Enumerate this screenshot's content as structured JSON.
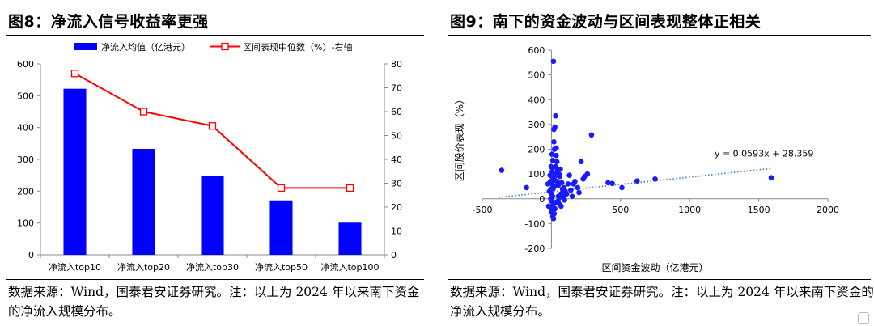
{
  "left": {
    "title": "图8：净流入信号收益率更强",
    "note": "数据来源：Wind，国泰君安证券研究。注：以上为 2024 年以来南下资金的净流入规模分布。",
    "chart_data": {
      "type": "bar",
      "categories": [
        "净流入top10",
        "净流入top20",
        "净流入top30",
        "净流入top50",
        "净流入top100"
      ],
      "series": [
        {
          "name": "净流入均值（亿港元）",
          "type": "bar",
          "axis": "left",
          "color": "#0000ff",
          "values": [
            522,
            333,
            248,
            171,
            101
          ]
        },
        {
          "name": "区间表现中位数（%）-右轴",
          "type": "line",
          "axis": "right",
          "color": "#ff0000",
          "values": [
            76,
            60,
            54,
            28,
            28
          ]
        }
      ],
      "yleft": {
        "lim": [
          0,
          600
        ],
        "ticks": [
          0,
          100,
          200,
          300,
          400,
          500,
          600
        ]
      },
      "yright": {
        "lim": [
          0,
          80
        ],
        "ticks": [
          0,
          10,
          20,
          30,
          40,
          50,
          60,
          70,
          80
        ]
      },
      "legend_position": "top"
    }
  },
  "right": {
    "title": "图9：南下的资金波动与区间表现整体正相关",
    "note": "数据来源：Wind，国泰君安证券研究。注：以上为 2024 年以来南下资金的净流入规模分布。",
    "chart_data": {
      "type": "scatter",
      "xlabel": "区间资金波动（亿港元）",
      "ylabel": "区间股价表现（%）",
      "xlim": [
        -500,
        2000
      ],
      "ylim": [
        -200,
        600
      ],
      "xticks": [
        -500,
        0,
        500,
        1000,
        1500,
        2000
      ],
      "yticks": [
        -200,
        -100,
        0,
        100,
        200,
        300,
        400,
        500,
        600
      ],
      "color": "#1a1aff",
      "trendline": {
        "slope": 0.0593,
        "intercept": 28.359,
        "label": "y = 0.0593x + 28.359",
        "color": "#4a86c8"
      },
      "points": [
        [
          -360,
          115
        ],
        [
          -180,
          45
        ],
        [
          1590,
          85
        ],
        [
          750,
          80
        ],
        [
          620,
          72
        ],
        [
          440,
          62
        ],
        [
          410,
          65
        ],
        [
          510,
          45
        ],
        [
          290,
          258
        ],
        [
          215,
          150
        ],
        [
          170,
          70
        ],
        [
          260,
          100
        ],
        [
          240,
          90
        ],
        [
          190,
          45
        ],
        [
          130,
          95
        ],
        [
          120,
          60
        ],
        [
          100,
          30
        ],
        [
          85,
          10
        ],
        [
          80,
          40
        ],
        [
          70,
          20
        ],
        [
          60,
          5
        ],
        [
          55,
          -20
        ],
        [
          50,
          55
        ],
        [
          45,
          115
        ],
        [
          40,
          150
        ],
        [
          30,
          130
        ],
        [
          35,
          175
        ],
        [
          35,
          205
        ],
        [
          42,
          70
        ],
        [
          48,
          -10
        ],
        [
          30,
          335
        ],
        [
          25,
          290
        ],
        [
          18,
          280
        ],
        [
          15,
          555
        ],
        [
          10,
          85
        ],
        [
          10,
          155
        ],
        [
          10,
          125
        ],
        [
          5,
          180
        ],
        [
          5,
          110
        ],
        [
          5,
          60
        ],
        [
          0,
          40
        ],
        [
          0,
          20
        ],
        [
          -5,
          0
        ],
        [
          -10,
          95
        ],
        [
          -15,
          30
        ],
        [
          -20,
          -30
        ],
        [
          -25,
          60
        ],
        [
          0,
          -45
        ],
        [
          5,
          -55
        ],
        [
          10,
          -70
        ],
        [
          15,
          -80
        ],
        [
          20,
          -60
        ],
        [
          25,
          -40
        ],
        [
          30,
          -15
        ],
        [
          20,
          50
        ],
        [
          25,
          75
        ],
        [
          28,
          100
        ],
        [
          12,
          40
        ],
        [
          8,
          10
        ],
        [
          -8,
          70
        ],
        [
          60,
          90
        ],
        [
          75,
          65
        ],
        [
          90,
          45
        ],
        [
          110,
          20
        ],
        [
          140,
          35
        ],
        [
          150,
          10
        ],
        [
          160,
          60
        ],
        [
          200,
          25
        ],
        [
          230,
          80
        ],
        [
          65,
          120
        ],
        [
          55,
          100
        ],
        [
          40,
          95
        ],
        [
          18,
          230
        ],
        [
          22,
          200
        ],
        [
          12,
          -25
        ],
        [
          2,
          -10
        ],
        [
          -3,
          130
        ],
        [
          95,
          -5
        ],
        [
          70,
          -30
        ],
        [
          50,
          10
        ]
      ]
    }
  }
}
